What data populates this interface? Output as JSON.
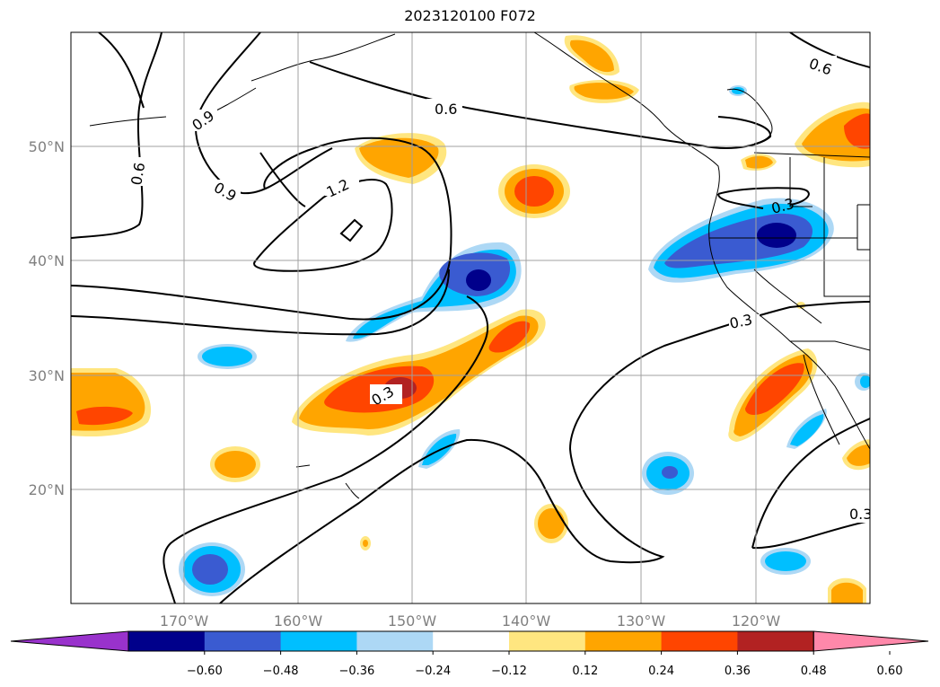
{
  "title": "2023120100 F072",
  "latitude_labels": [
    "50°N",
    "40°N",
    "30°N",
    "20°N"
  ],
  "longitude_labels": [
    "170°W",
    "160°W",
    "150°W",
    "140°W",
    "130°W",
    "120°W"
  ],
  "colorbar": {
    "tick_labels": [
      "−0.60",
      "−0.48",
      "−0.36",
      "−0.24",
      "−0.12",
      "0.12",
      "0.24",
      "0.36",
      "0.48",
      "0.60"
    ],
    "colors": [
      "#9932cc",
      "#00008b",
      "#3a5bd1",
      "#00bfff",
      "#add8f5",
      "#ffffff",
      "#ffe680",
      "#ffa500",
      "#ff4500",
      "#b22222",
      "#ff88aa"
    ]
  },
  "contour_labels": [
    "0.6",
    "0.9",
    "0.9",
    "1.2",
    "0.6",
    "0.6",
    "0.3",
    "0.3",
    "0.3",
    "0.3"
  ]
}
